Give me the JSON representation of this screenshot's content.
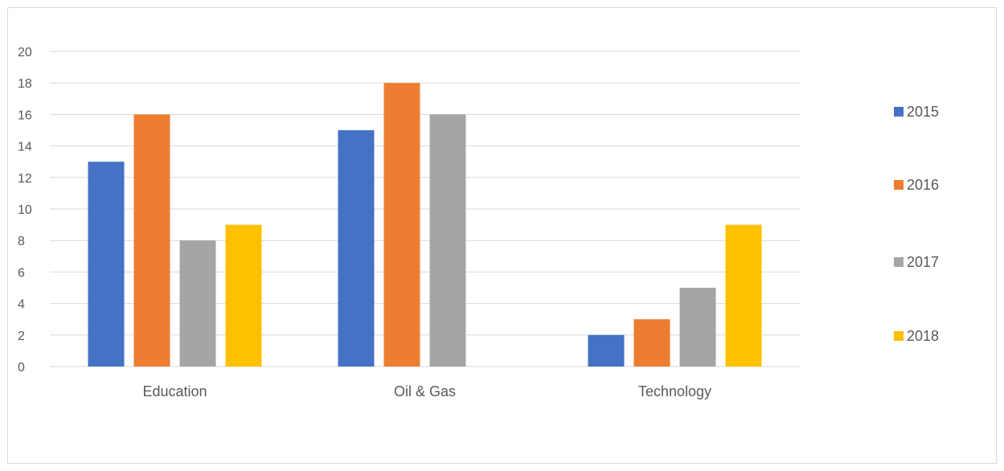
{
  "chart_data": {
    "type": "bar",
    "title": "",
    "xlabel": "",
    "ylabel": "",
    "categories": [
      "Education",
      "Oil & Gas",
      "Technology"
    ],
    "series": [
      {
        "name": "2015",
        "color": "#4472c4",
        "values": [
          13,
          15,
          2
        ]
      },
      {
        "name": "2016",
        "color": "#ed7d31",
        "values": [
          16,
          18,
          3
        ]
      },
      {
        "name": "2017",
        "color": "#a5a5a5",
        "values": [
          8,
          16,
          5
        ]
      },
      {
        "name": "2018",
        "color": "#ffc000",
        "values": [
          9,
          0,
          9
        ]
      }
    ],
    "ylim": [
      0,
      20
    ],
    "yticks": [
      0,
      2,
      4,
      6,
      8,
      10,
      12,
      14,
      16,
      18,
      20
    ],
    "grid": true,
    "legend_position": "right"
  }
}
